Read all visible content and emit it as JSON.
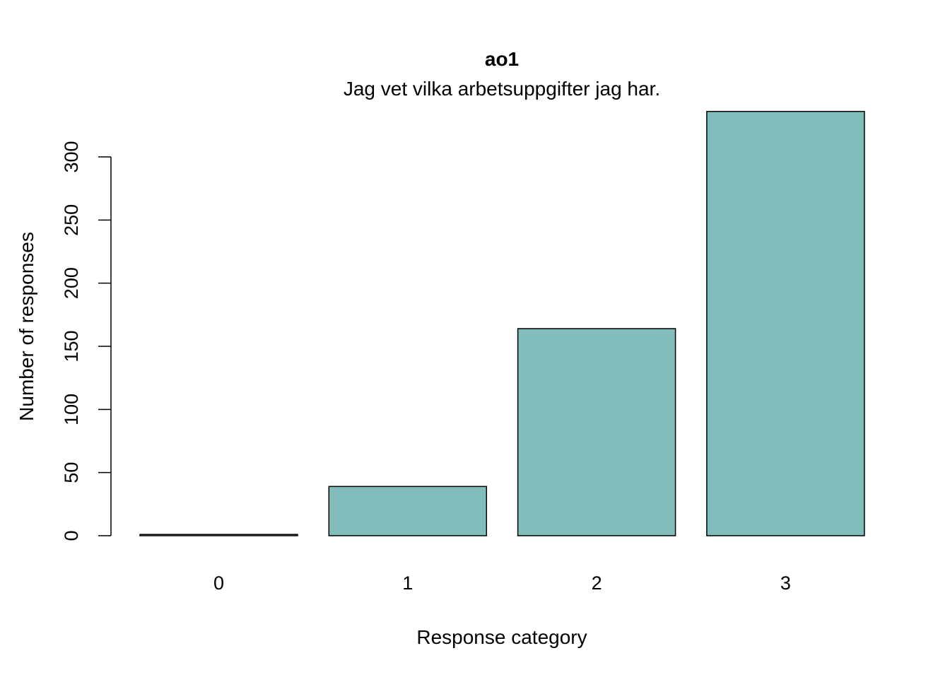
{
  "chart_data": {
    "type": "bar",
    "title": "ao1",
    "subtitle": "Jag vet vilka arbetsuppgifter jag har.",
    "xlabel": "Response category",
    "ylabel": "Number of responses",
    "categories": [
      "0",
      "1",
      "2",
      "3"
    ],
    "values": [
      1,
      39,
      164,
      336
    ],
    "ylim": [
      0,
      336
    ],
    "yticks": [
      0,
      50,
      100,
      150,
      200,
      250,
      300
    ],
    "bar_color": "#80bdbb",
    "bar_border": "#000000",
    "grid": false,
    "legend": "none"
  }
}
